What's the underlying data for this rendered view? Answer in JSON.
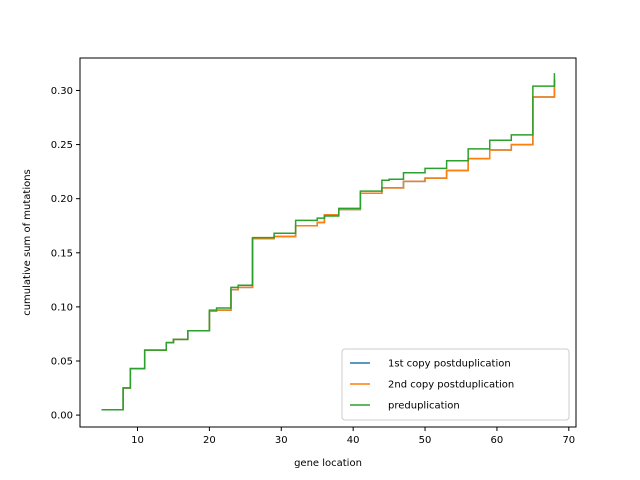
{
  "chart_data": {
    "type": "line",
    "step": "post",
    "xlabel": "gene location",
    "ylabel": "cumulative sum of mutations",
    "xlim": [
      2,
      71
    ],
    "ylim": [
      -0.011,
      0.33
    ],
    "x_ticks": [
      10,
      20,
      30,
      40,
      50,
      60,
      70
    ],
    "y_ticks": [
      0.0,
      0.05,
      0.1,
      0.15,
      0.2,
      0.25,
      0.3
    ],
    "x_tick_labels": [
      "10",
      "20",
      "30",
      "40",
      "50",
      "60",
      "70"
    ],
    "y_tick_labels": [
      "0.00",
      "0.05",
      "0.10",
      "0.15",
      "0.20",
      "0.25",
      "0.30"
    ],
    "grid": false,
    "legend_position": "lower-right",
    "series": [
      {
        "name": "1st copy postduplication",
        "color": "#1f77b4",
        "x": [
          5,
          8,
          9,
          11,
          14,
          15,
          17,
          20,
          21,
          23,
          24,
          26,
          29,
          32,
          35,
          36,
          38,
          41,
          44,
          47,
          50,
          53,
          56,
          59,
          62,
          65,
          68
        ],
        "y": [
          0.005,
          0.025,
          0.043,
          0.06,
          0.067,
          0.07,
          0.078,
          0.096,
          0.097,
          0.116,
          0.118,
          0.163,
          0.165,
          0.175,
          0.178,
          0.185,
          0.19,
          0.205,
          0.21,
          0.216,
          0.219,
          0.226,
          0.237,
          0.245,
          0.25,
          0.294,
          0.31
        ]
      },
      {
        "name": "2nd copy postduplication",
        "color": "#ff7f0e",
        "x": [
          5,
          8,
          9,
          11,
          14,
          15,
          17,
          20,
          21,
          23,
          24,
          26,
          29,
          32,
          35,
          36,
          38,
          41,
          44,
          47,
          50,
          53,
          56,
          59,
          62,
          65,
          68
        ],
        "y": [
          0.005,
          0.025,
          0.043,
          0.06,
          0.067,
          0.07,
          0.078,
          0.096,
          0.097,
          0.116,
          0.118,
          0.163,
          0.165,
          0.175,
          0.178,
          0.185,
          0.19,
          0.205,
          0.21,
          0.216,
          0.219,
          0.226,
          0.237,
          0.245,
          0.25,
          0.294,
          0.31
        ]
      },
      {
        "name": "preduplication",
        "color": "#2ca02c",
        "x": [
          5,
          8,
          9,
          11,
          14,
          15,
          17,
          20,
          21,
          23,
          24,
          26,
          29,
          32,
          35,
          36,
          38,
          41,
          44,
          45,
          47,
          50,
          53,
          56,
          59,
          62,
          65,
          68
        ],
        "y": [
          0.005,
          0.025,
          0.043,
          0.06,
          0.067,
          0.07,
          0.078,
          0.097,
          0.099,
          0.118,
          0.12,
          0.164,
          0.168,
          0.18,
          0.182,
          0.184,
          0.191,
          0.207,
          0.217,
          0.218,
          0.224,
          0.228,
          0.235,
          0.246,
          0.254,
          0.259,
          0.304,
          0.316
        ]
      }
    ]
  }
}
